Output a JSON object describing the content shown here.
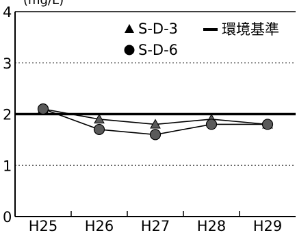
{
  "chart_data": {
    "type": "line",
    "unit_label": "(mg/L)",
    "categories": [
      "H25",
      "H26",
      "H27",
      "H28",
      "H29"
    ],
    "y_ticks": [
      "0",
      "1",
      "2",
      "3",
      "4"
    ],
    "ylim": [
      0,
      4
    ],
    "grid": "dotted horizontal lines at 1 and 3",
    "legend_position": "top-right",
    "series": [
      {
        "name": "S-D-3",
        "marker": "triangle",
        "values": [
          2.1,
          1.9,
          1.8,
          1.9,
          1.8
        ]
      },
      {
        "name": "S-D-6",
        "marker": "circle",
        "values": [
          2.1,
          1.7,
          1.6,
          1.8,
          1.8
        ]
      }
    ],
    "reference_line": {
      "name": "環境基準",
      "value": 2
    },
    "colors": {
      "line": "#000000",
      "marker_fill": "#5a5a5a",
      "grid": "#555555"
    }
  }
}
